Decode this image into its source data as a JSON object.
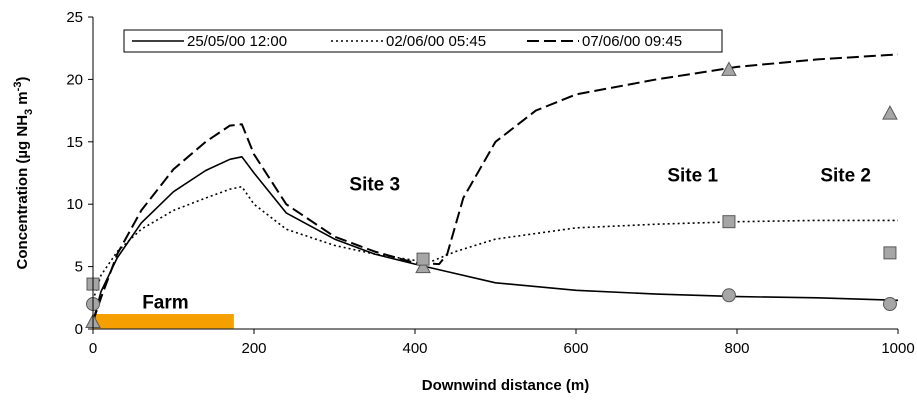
{
  "chart_data": {
    "type": "line",
    "xlabel": "Downwind distance (m)",
    "ylabel_parts": {
      "pre": "Concentration (µg NH",
      "sub": "3",
      "mid": " m",
      "sup": "-3",
      "post": ")"
    },
    "xlim": [
      0,
      1000
    ],
    "ylim": [
      0,
      25
    ],
    "xticks": [
      0,
      200,
      400,
      600,
      800,
      1000
    ],
    "yticks": [
      0,
      5,
      10,
      15,
      20,
      25
    ],
    "grid": false,
    "legend_position": "top",
    "series": [
      {
        "name": "25/05/00 12:00",
        "style": "solid",
        "x": [
          0,
          10,
          30,
          60,
          100,
          140,
          170,
          185,
          200,
          240,
          300,
          350,
          400,
          440,
          500,
          600,
          700,
          800,
          900,
          1000
        ],
        "y": [
          0.6,
          3.0,
          5.7,
          8.5,
          11.0,
          12.7,
          13.6,
          13.8,
          12.5,
          9.3,
          7.2,
          6.0,
          5.2,
          4.6,
          3.7,
          3.1,
          2.8,
          2.6,
          2.5,
          2.3
        ]
      },
      {
        "name": "02/06/00 05:45",
        "style": "dotted",
        "x": [
          0,
          10,
          30,
          60,
          100,
          140,
          170,
          185,
          200,
          240,
          300,
          350,
          400,
          420,
          450,
          500,
          600,
          700,
          800,
          900,
          1000
        ],
        "y": [
          2.3,
          4.3,
          6.2,
          8.0,
          9.5,
          10.5,
          11.2,
          11.4,
          10.0,
          8.0,
          6.7,
          6.0,
          5.5,
          5.4,
          6.2,
          7.2,
          8.1,
          8.4,
          8.6,
          8.7,
          8.7
        ]
      },
      {
        "name": "07/06/00 09:45",
        "style": "dashed",
        "x": [
          0,
          10,
          30,
          60,
          100,
          140,
          170,
          185,
          200,
          240,
          300,
          350,
          400,
          430,
          440,
          460,
          500,
          550,
          600,
          700,
          800,
          900,
          1000
        ],
        "y": [
          0.6,
          2.5,
          6.0,
          9.5,
          12.8,
          15.0,
          16.3,
          16.4,
          14.0,
          10.0,
          7.4,
          6.2,
          5.3,
          5.2,
          6.0,
          10.5,
          15.0,
          17.5,
          18.8,
          20.0,
          21.0,
          21.6,
          22.0
        ]
      }
    ],
    "markers": [
      {
        "shape": "triangle",
        "x": 0,
        "y": 0.6
      },
      {
        "shape": "circle",
        "x": 0,
        "y": 2.0
      },
      {
        "shape": "square",
        "x": 0,
        "y": 3.6
      },
      {
        "shape": "triangle",
        "x": 410,
        "y": 5.0
      },
      {
        "shape": "square",
        "x": 410,
        "y": 5.6
      },
      {
        "shape": "triangle",
        "x": 790,
        "y": 20.8
      },
      {
        "shape": "square",
        "x": 790,
        "y": 8.6
      },
      {
        "shape": "circle",
        "x": 790,
        "y": 2.7
      },
      {
        "shape": "triangle",
        "x": 990,
        "y": 17.3
      },
      {
        "shape": "square",
        "x": 990,
        "y": 6.1
      },
      {
        "shape": "circle",
        "x": 990,
        "y": 2.0
      }
    ],
    "annotations": [
      {
        "text": "Site 3",
        "x": 350,
        "y": 11.1
      },
      {
        "text": "Site 1",
        "x": 745,
        "y": 11.8
      },
      {
        "text": "Site 2",
        "x": 935,
        "y": 11.8
      },
      {
        "text": "Farm",
        "x": 90,
        "y": 1.65
      }
    ],
    "farm_bar": {
      "x_start": 0,
      "x_end": 175,
      "color": "#f5a000"
    },
    "colors": {
      "line": "#000000",
      "marker_fill": "#a6a6a6",
      "marker_stroke": "#595959"
    }
  }
}
